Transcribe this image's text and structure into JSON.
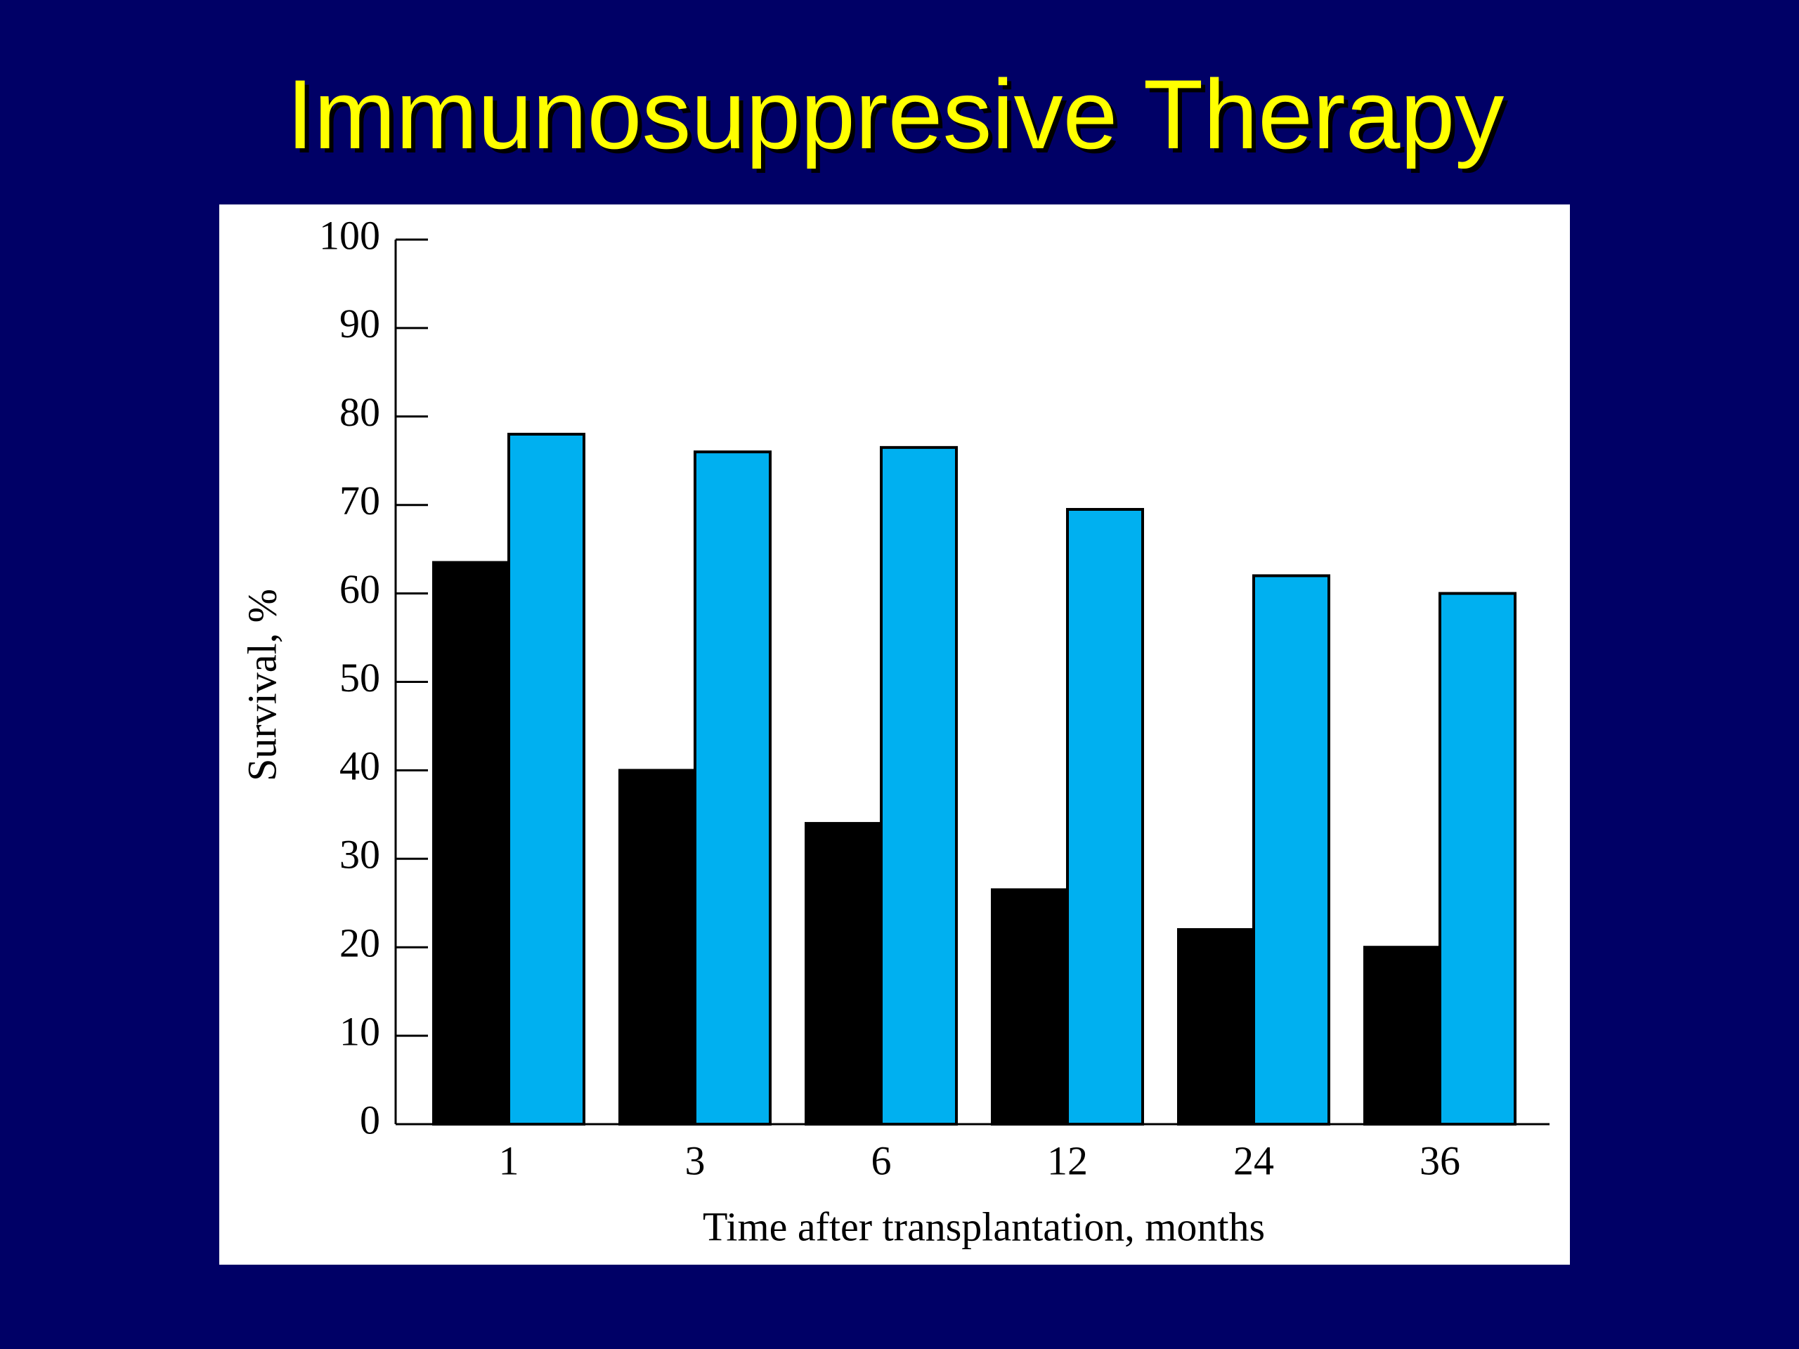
{
  "chart_data": {
    "type": "bar",
    "title": "Immunosuppresive Therapy",
    "x_label": "Time after transplantation, months",
    "y_label": "Survival, %",
    "categories": [
      "1",
      "3",
      "6",
      "12",
      "24",
      "36"
    ],
    "series": [
      {
        "color": "#000000",
        "values": [
          63.5,
          40,
          34,
          26.5,
          22,
          20
        ]
      },
      {
        "color": "#00b0f0",
        "values": [
          78,
          76,
          76.5,
          69.5,
          62,
          60
        ]
      }
    ],
    "ylim": [
      0,
      100
    ],
    "yticks": [
      0,
      10,
      20,
      30,
      40,
      50,
      60,
      70,
      80,
      90,
      100
    ]
  }
}
